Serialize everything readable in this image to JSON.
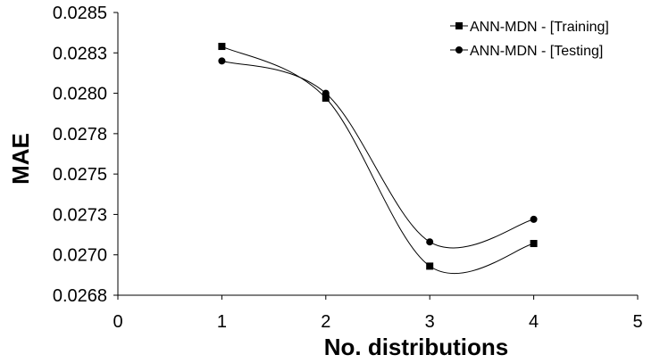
{
  "chart_data": {
    "type": "line",
    "xlabel": "No. distributions",
    "ylabel": "MAE",
    "xlim": [
      0,
      5
    ],
    "ylim": [
      0.02675,
      0.0285
    ],
    "x_ticks": [
      0,
      1,
      2,
      3,
      4,
      5
    ],
    "x_tick_labels": [
      "0",
      "1",
      "2",
      "3",
      "4",
      "5"
    ],
    "y_ticks": [
      0.02675,
      0.027,
      0.02725,
      0.0275,
      0.02775,
      0.028,
      0.02825,
      0.0285
    ],
    "y_tick_labels": [
      "0.0268",
      "0.0270",
      "0.0273",
      "0.0275",
      "0.0278",
      "0.0280",
      "0.0283",
      "0.0285"
    ],
    "grid": false,
    "legend_position": "top-right",
    "smoothed_lines": true,
    "series": [
      {
        "name": "ANN-MDN - [Training]",
        "marker": "square",
        "color": "#000000",
        "x": [
          1,
          2,
          3,
          4
        ],
        "y": [
          0.02829,
          0.02797,
          0.02693,
          0.02707
        ]
      },
      {
        "name": "ANN-MDN - [Testing]",
        "marker": "circle",
        "color": "#000000",
        "x": [
          1,
          2,
          3,
          4
        ],
        "y": [
          0.0282,
          0.028,
          0.02708,
          0.02722
        ]
      }
    ]
  }
}
